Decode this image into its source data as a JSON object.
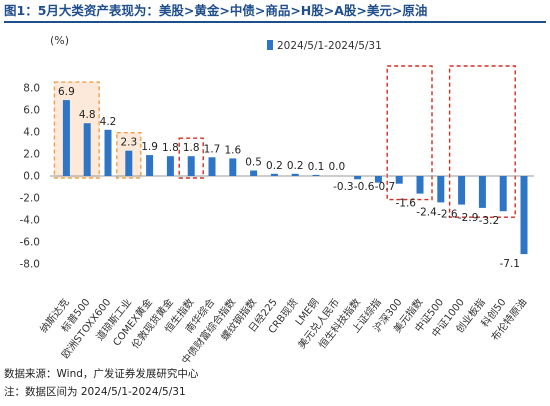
{
  "title": "图1：5月大类资产表现为：美股>黄金>中债>商品>H股>A股>美元>原油",
  "footer": {
    "source": "数据来源：Wind，广发证券发展研究中心",
    "period": "注：数据区间为 2024/5/1-2024/5/31"
  },
  "colors": {
    "bar": "#2e75c6",
    "title": "#1f4e8c",
    "orange_box": "#f0a04b",
    "orange_fill": "#fde9d9",
    "red_box": "#d62d20"
  },
  "chart_data": {
    "type": "bar",
    "unit_label": "(%)",
    "legend": "2024/5/1-2024/5/31",
    "legend_position": "top-right",
    "ylim": [
      -8,
      8
    ],
    "yticks": [
      "8.0",
      "6.0",
      "4.0",
      "2.0",
      "0.0",
      "-2.0",
      "-4.0",
      "-6.0",
      "-8.0"
    ],
    "grid": false,
    "categories": [
      "纳斯达克",
      "标普500",
      "欧洲STOXX600",
      "道琼斯工业",
      "COMEX黄金",
      "伦敦现货黄金",
      "恒生指数",
      "南华综合",
      "中债财富综合指数",
      "螺纹钢指数",
      "日经225",
      "CRB现货",
      "LME铜",
      "美元兑人民币",
      "恒生科技指数",
      "上证综指",
      "沪深300",
      "美元指数",
      "中证500",
      "中证1000",
      "创业板指",
      "科创50",
      "布伦特原油"
    ],
    "values": [
      6.9,
      4.8,
      4.2,
      2.3,
      1.9,
      1.8,
      1.8,
      1.7,
      1.6,
      0.5,
      0.2,
      0.2,
      0.1,
      0.0,
      -0.3,
      -0.6,
      -0.7,
      -1.6,
      -2.4,
      -2.6,
      -2.9,
      -3.2,
      -7.1
    ],
    "data_labels": [
      "6.9",
      "4.8",
      "4.2",
      "2.3",
      "1.9",
      "1.8",
      "1.8",
      "1.7",
      "1.6",
      "0.5",
      "0.2",
      "0.2",
      "0.1",
      "0.0",
      "-0.3",
      "-0.6",
      "-0.7",
      "-1.6",
      "-2.4",
      "-2.6",
      "-2.9",
      "-3.2",
      "-7.1"
    ],
    "highlights": [
      {
        "style": "orange",
        "from": 0,
        "to": 1
      },
      {
        "style": "orange",
        "from": 3,
        "to": 3
      },
      {
        "style": "red",
        "from": 6,
        "to": 6
      },
      {
        "style": "red",
        "from": 16,
        "to": 17
      },
      {
        "style": "red",
        "from": 19,
        "to": 21
      }
    ]
  }
}
